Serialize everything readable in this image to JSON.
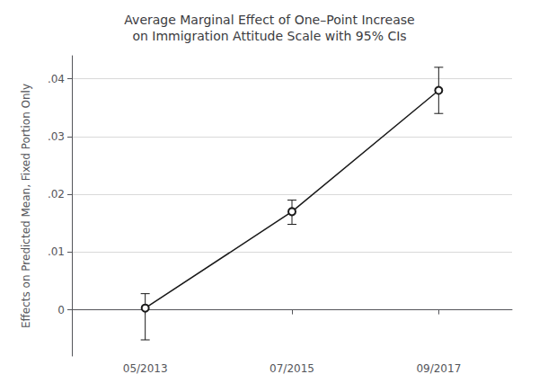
{
  "chart_data": {
    "type": "line",
    "title": "Average Marginal Effect of One–Point Increase\non Immigration Attitude Scale with 95% CIs",
    "ylabel": "Effects on Predicted Mean, Fixed Portion Only",
    "categories": [
      "05/2013",
      "07/2015",
      "09/2017"
    ],
    "values": [
      0.0003,
      0.017,
      0.038
    ],
    "err_lower": [
      0.0055,
      0.0022,
      0.004
    ],
    "err_upper": [
      0.0025,
      0.002,
      0.004
    ],
    "ylim": [
      -0.008,
      0.044
    ],
    "yticks": [
      0,
      {
        "value": 0.01,
        "label": ".01"
      },
      {
        "value": 0.02,
        "label": ".02"
      },
      {
        "value": 0.03,
        "label": ".03"
      },
      {
        "value": 0.04,
        "label": ".04"
      }
    ],
    "color": "#1a1a1a",
    "marker": "emptyCircle",
    "grid": true
  }
}
